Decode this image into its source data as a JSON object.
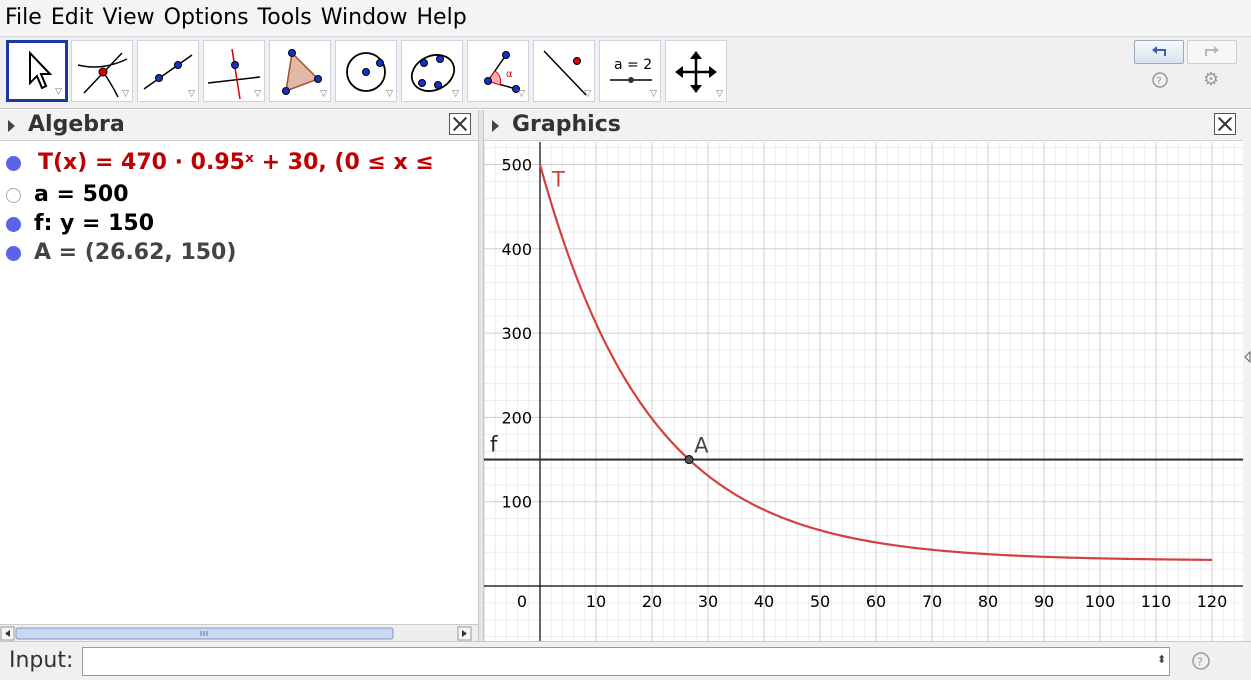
{
  "menu": [
    "File",
    "Edit",
    "View",
    "Options",
    "Tools",
    "Window",
    "Help"
  ],
  "toolbar": {
    "tools": [
      {
        "icon": "move-arrow-icon",
        "selected": true
      },
      {
        "icon": "point-on-intersection-icon"
      },
      {
        "icon": "line-through-points-icon"
      },
      {
        "icon": "perpendicular-line-icon"
      },
      {
        "icon": "polygon-icon"
      },
      {
        "icon": "circle-center-point-icon"
      },
      {
        "icon": "conic-five-points-icon"
      },
      {
        "icon": "angle-icon",
        "angle_symbol": "α"
      },
      {
        "icon": "reflect-about-line-icon"
      },
      {
        "icon": "slider-icon",
        "slider_text": "a = 2"
      },
      {
        "icon": "move-graphics-view-icon"
      }
    ],
    "undo_icon": "undo-icon",
    "redo_icon": "redo-icon",
    "help_icon": "help-icon",
    "settings_icon": "gear-icon"
  },
  "algebra": {
    "title": "Algebra",
    "items": [
      {
        "text": "T(x)  =  470 · 0.95ˣ + 30,    (0 ≤ x ≤",
        "color": "#c00000",
        "visible": true
      },
      {
        "text": "a = 500",
        "color": "#000000",
        "visible": false
      },
      {
        "text": "f: y = 150",
        "color": "#000000",
        "visible": true
      },
      {
        "text": "A = (26.62, 150)",
        "color": "#444444",
        "visible": true
      }
    ]
  },
  "graphics": {
    "title": "Graphics",
    "curve_label": "T",
    "line_label": "f",
    "point_label": "A",
    "x_ticks": [
      "0",
      "10",
      "20",
      "30",
      "40",
      "50",
      "60",
      "70",
      "80",
      "90",
      "100",
      "110",
      "120"
    ],
    "y_ticks": [
      "100",
      "200",
      "300",
      "400",
      "500"
    ],
    "curve_color": "#d44040",
    "line_color": "#333333"
  },
  "chart_data": {
    "type": "line",
    "xlim": [
      -10,
      125
    ],
    "ylim": [
      -60,
      525
    ],
    "grid": true,
    "series": [
      {
        "name": "T",
        "function": "470*0.95^x+30",
        "domain": [
          0,
          120
        ]
      },
      {
        "name": "f",
        "function": "150",
        "domain": [
          -10,
          125
        ]
      }
    ],
    "points": [
      {
        "name": "A",
        "x": 26.62,
        "y": 150
      }
    ]
  },
  "input": {
    "label": "Input:",
    "value": "",
    "help_icon": "help-icon"
  }
}
